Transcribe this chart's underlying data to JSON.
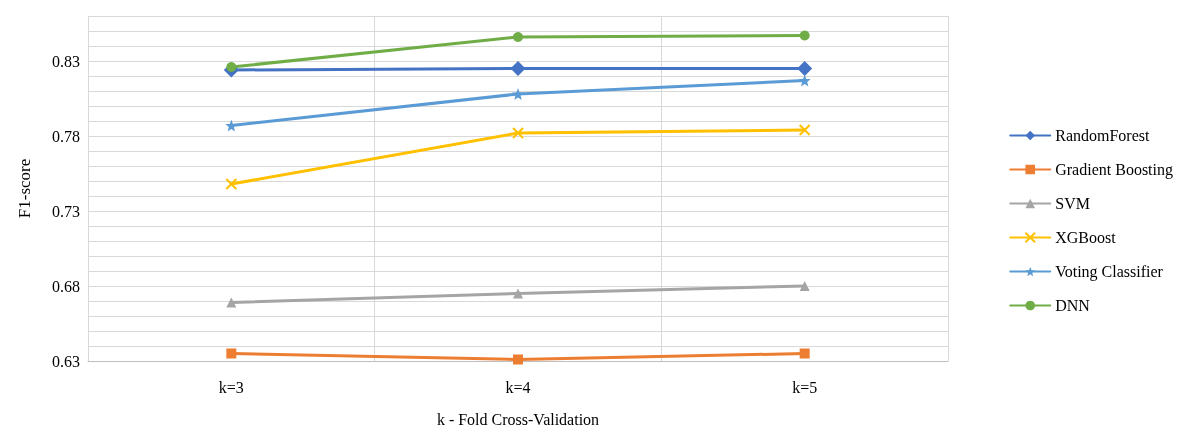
{
  "chart_data": {
    "type": "line",
    "xlabel": "k - Fold Cross-Validation",
    "ylabel": "F1-score",
    "categories": [
      "k=3",
      "k=4",
      "k=5"
    ],
    "series": [
      {
        "name": "RandomForest",
        "color": "#4472c4",
        "marker": "diamond",
        "values": [
          0.824,
          0.825,
          0.825
        ]
      },
      {
        "name": "Gradient Boosting",
        "color": "#ed7d31",
        "marker": "square",
        "values": [
          0.635,
          0.631,
          0.635
        ]
      },
      {
        "name": "SVM",
        "color": "#a5a5a5",
        "marker": "triangle",
        "values": [
          0.669,
          0.675,
          0.68
        ]
      },
      {
        "name": "XGBoost",
        "color": "#ffc000",
        "marker": "cross",
        "values": [
          0.748,
          0.782,
          0.784
        ]
      },
      {
        "name": "Voting Classifier",
        "color": "#5b9bd5",
        "marker": "star",
        "values": [
          0.787,
          0.808,
          0.817
        ]
      },
      {
        "name": "DNN",
        "color": "#70ad47",
        "marker": "circle",
        "values": [
          0.826,
          0.846,
          0.847
        ]
      }
    ],
    "ylim": [
      0.63,
      0.86
    ],
    "yticks": [
      0.63,
      {
        "value": 0.64,
        "label": null
      },
      {
        "value": 0.65,
        "label": null
      },
      {
        "value": 0.66,
        "label": null
      },
      {
        "value": 0.67,
        "label": null
      },
      0.68,
      {
        "value": 0.69,
        "label": null
      },
      {
        "value": 0.7,
        "label": null
      },
      {
        "value": 0.71,
        "label": null
      },
      {
        "value": 0.72,
        "label": null
      },
      0.73,
      {
        "value": 0.74,
        "label": null
      },
      {
        "value": 0.75,
        "label": null
      },
      {
        "value": 0.76,
        "label": null
      },
      {
        "value": 0.77,
        "label": null
      },
      0.78,
      {
        "value": 0.79,
        "label": null
      },
      {
        "value": 0.8,
        "label": null
      },
      {
        "value": 0.81,
        "label": null
      },
      {
        "value": 0.82,
        "label": null
      },
      0.83,
      {
        "value": 0.84,
        "label": null
      },
      {
        "value": 0.85,
        "label": null
      },
      {
        "value": 0.86,
        "label": null
      }
    ],
    "grid": true,
    "legend": "right",
    "line_style": "solid"
  }
}
